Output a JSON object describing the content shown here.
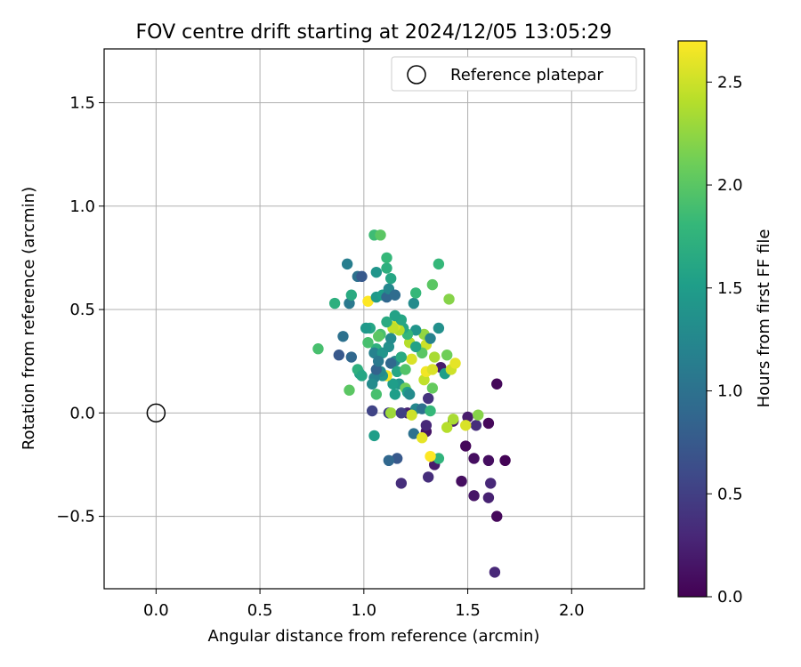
{
  "chart_data": {
    "type": "scatter",
    "title": "FOV centre drift starting at 2024/12/05 13:05:29",
    "xlabel": "Angular distance from reference (arcmin)",
    "ylabel": "Rotation from reference (arcmin)",
    "xlim": [
      -0.25,
      2.35
    ],
    "ylim": [
      -0.85,
      1.76
    ],
    "xticks": [
      0.0,
      0.5,
      1.0,
      1.5,
      2.0
    ],
    "xtick_labels": [
      "0.0",
      "0.5",
      "1.0",
      "1.5",
      "2.0"
    ],
    "yticks": [
      -0.5,
      0.0,
      0.5,
      1.0,
      1.5
    ],
    "ytick_labels": [
      "−0.5",
      "0.0",
      "0.5",
      "1.0",
      "1.5"
    ],
    "grid": true,
    "legend": {
      "position": "top-right",
      "entries": [
        "Reference platepar"
      ]
    },
    "reference_point": {
      "name": "Reference platepar",
      "x": 0.0,
      "y": 0.0,
      "marker": "open-circle"
    },
    "colorbar": {
      "label": "Hours from first FF file",
      "range": [
        0.0,
        2.7
      ],
      "ticks": [
        0.0,
        0.5,
        1.0,
        1.5,
        2.0,
        2.5
      ],
      "tick_labels": [
        "0.0",
        "0.5",
        "1.0",
        "1.5",
        "2.0",
        "2.5"
      ],
      "colormap": "viridis"
    },
    "points": [
      [
        1.64,
        0.14,
        0.05
      ],
      [
        1.6,
        -0.05,
        0.05
      ],
      [
        1.68,
        -0.23,
        0.02
      ],
      [
        1.6,
        -0.23,
        0.1
      ],
      [
        1.53,
        -0.22,
        0.1
      ],
      [
        1.49,
        -0.16,
        0.05
      ],
      [
        1.47,
        -0.33,
        0.1
      ],
      [
        1.53,
        -0.4,
        0.15
      ],
      [
        1.6,
        -0.41,
        0.25
      ],
      [
        1.61,
        -0.34,
        0.3
      ],
      [
        1.64,
        -0.5,
        0.05
      ],
      [
        1.63,
        -0.77,
        0.3
      ],
      [
        1.54,
        -0.06,
        0.35
      ],
      [
        1.5,
        -0.02,
        0.2
      ],
      [
        1.43,
        -0.04,
        0.2
      ],
      [
        1.31,
        -0.31,
        0.35
      ],
      [
        1.34,
        -0.25,
        0.2
      ],
      [
        1.18,
        -0.34,
        0.35
      ],
      [
        1.3,
        -0.09,
        0.15
      ],
      [
        1.3,
        -0.06,
        0.3
      ],
      [
        1.31,
        0.07,
        0.4
      ],
      [
        1.37,
        0.22,
        0.2
      ],
      [
        1.21,
        0.0,
        0.25
      ],
      [
        1.12,
        0.0,
        0.5
      ],
      [
        1.04,
        0.01,
        0.55
      ],
      [
        1.16,
        -0.22,
        0.75
      ],
      [
        1.12,
        -0.23,
        0.9
      ],
      [
        1.05,
        -0.11,
        1.5
      ],
      [
        1.36,
        -0.22,
        1.75
      ],
      [
        1.24,
        -0.1,
        1.0
      ],
      [
        1.25,
        0.02,
        1.25
      ],
      [
        1.28,
        0.02,
        1.0
      ],
      [
        1.32,
        0.01,
        1.8
      ],
      [
        1.43,
        -0.03,
        2.35
      ],
      [
        1.4,
        -0.07,
        2.4
      ],
      [
        1.49,
        -0.06,
        2.55
      ],
      [
        1.55,
        -0.01,
        2.2
      ],
      [
        1.28,
        -0.12,
        2.6
      ],
      [
        1.32,
        -0.21,
        2.7
      ],
      [
        1.23,
        -0.01,
        2.5
      ],
      [
        1.13,
        0.0,
        2.3
      ],
      [
        1.29,
        0.16,
        2.45
      ],
      [
        1.33,
        0.12,
        2.05
      ],
      [
        1.39,
        0.19,
        1.5
      ],
      [
        1.4,
        0.28,
        2.1
      ],
      [
        1.42,
        0.21,
        2.5
      ],
      [
        1.44,
        0.24,
        2.6
      ],
      [
        1.34,
        0.27,
        2.35
      ],
      [
        1.3,
        0.2,
        2.65
      ],
      [
        1.33,
        0.21,
        2.55
      ],
      [
        1.3,
        0.33,
        2.5
      ],
      [
        1.29,
        0.38,
        2.25
      ],
      [
        1.28,
        0.29,
        2.0
      ],
      [
        1.25,
        0.4,
        1.4
      ],
      [
        1.22,
        0.34,
        2.4
      ],
      [
        1.23,
        0.26,
        2.55
      ],
      [
        1.21,
        0.38,
        1.8
      ],
      [
        1.19,
        0.41,
        1.6
      ],
      [
        1.17,
        0.4,
        2.4
      ],
      [
        1.15,
        0.42,
        2.55
      ],
      [
        1.14,
        0.41,
        2.45
      ],
      [
        1.18,
        0.45,
        1.6
      ],
      [
        1.15,
        0.47,
        1.55
      ],
      [
        1.11,
        0.44,
        1.65
      ],
      [
        1.08,
        0.38,
        1.9
      ],
      [
        1.07,
        0.37,
        2.0
      ],
      [
        1.06,
        0.31,
        1.7
      ],
      [
        1.05,
        0.29,
        1.2
      ],
      [
        1.09,
        0.29,
        1.4
      ],
      [
        1.12,
        0.32,
        1.35
      ],
      [
        1.13,
        0.36,
        1.3
      ],
      [
        1.15,
        0.25,
        1.25
      ],
      [
        1.13,
        0.24,
        0.9
      ],
      [
        1.16,
        0.2,
        1.6
      ],
      [
        1.18,
        0.27,
        1.65
      ],
      [
        1.2,
        0.21,
        1.95
      ],
      [
        1.17,
        0.14,
        1.4
      ],
      [
        1.2,
        0.12,
        2.1
      ],
      [
        1.21,
        0.1,
        1.5
      ],
      [
        1.22,
        0.09,
        1.3
      ],
      [
        1.14,
        0.14,
        1.5
      ],
      [
        1.11,
        0.18,
        2.65
      ],
      [
        1.09,
        0.18,
        1.4
      ],
      [
        1.08,
        0.2,
        1.3
      ],
      [
        1.05,
        0.17,
        1.2
      ],
      [
        1.04,
        0.14,
        1.3
      ],
      [
        1.06,
        0.09,
        1.9
      ],
      [
        1.15,
        0.09,
        1.5
      ],
      [
        1.18,
        0.0,
        0.5
      ],
      [
        1.03,
        0.41,
        1.6
      ],
      [
        1.02,
        0.34,
        1.9
      ],
      [
        1.01,
        0.41,
        1.45
      ],
      [
        0.98,
        0.19,
        1.5
      ],
      [
        0.97,
        0.21,
        1.7
      ],
      [
        0.99,
        0.18,
        1.6
      ],
      [
        0.93,
        0.11,
        2.0
      ],
      [
        0.94,
        0.27,
        0.9
      ],
      [
        0.88,
        0.28,
        0.75
      ],
      [
        0.9,
        0.37,
        1.0
      ],
      [
        0.78,
        0.31,
        1.9
      ],
      [
        0.86,
        0.53,
        1.7
      ],
      [
        0.93,
        0.53,
        1.1
      ],
      [
        0.94,
        0.57,
        1.65
      ],
      [
        0.97,
        0.66,
        1.0
      ],
      [
        0.99,
        0.66,
        0.75
      ],
      [
        0.92,
        0.72,
        1.15
      ],
      [
        1.02,
        0.54,
        2.7
      ],
      [
        1.06,
        0.56,
        1.45
      ],
      [
        1.06,
        0.68,
        1.4
      ],
      [
        1.09,
        0.57,
        1.5
      ],
      [
        1.11,
        0.56,
        0.9
      ],
      [
        1.12,
        0.6,
        1.25
      ],
      [
        1.13,
        0.65,
        1.6
      ],
      [
        1.15,
        0.57,
        0.95
      ],
      [
        1.11,
        0.7,
        1.7
      ],
      [
        1.11,
        0.75,
        1.8
      ],
      [
        1.05,
        0.86,
        1.85
      ],
      [
        1.08,
        0.86,
        2.0
      ],
      [
        1.24,
        0.53,
        1.3
      ],
      [
        1.25,
        0.58,
        1.8
      ],
      [
        1.33,
        0.62,
        2.0
      ],
      [
        1.36,
        0.72,
        1.8
      ],
      [
        1.41,
        0.55,
        2.2
      ],
      [
        1.36,
        0.41,
        1.35
      ],
      [
        1.32,
        0.36,
        1.2
      ],
      [
        1.25,
        0.32,
        1.55
      ],
      [
        1.06,
        0.21,
        0.85
      ],
      [
        1.07,
        0.25,
        1.1
      ]
    ]
  }
}
